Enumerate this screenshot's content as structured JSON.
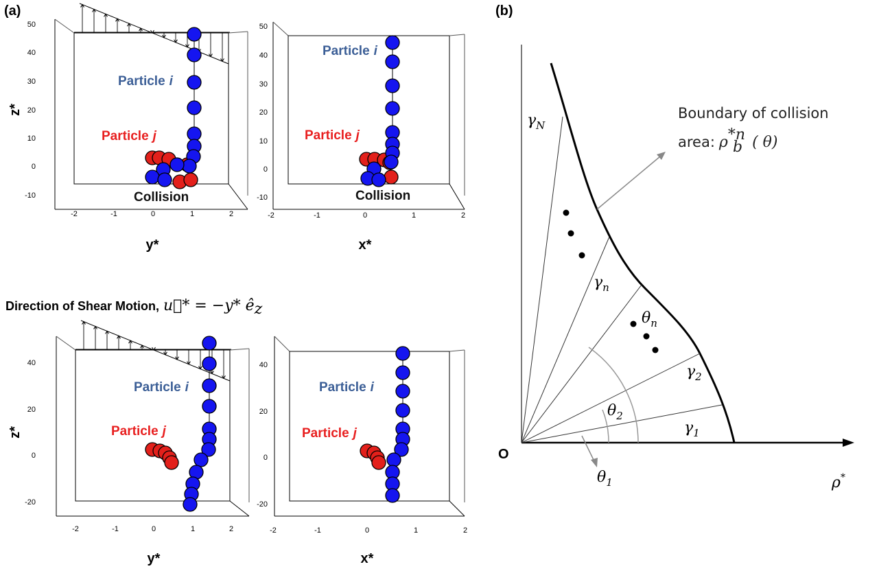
{
  "panel_a": {
    "label": "(a)",
    "heading": "Direction of Shear Motion,",
    "equation": "u⃗* = −y* ê",
    "equation_sub": "z",
    "plots": [
      {
        "z_label": "z*",
        "h_label": "y*",
        "z_ticks": [
          50,
          40,
          30,
          20,
          10,
          0,
          -10
        ],
        "h_ticks": [
          -2,
          -1,
          0,
          1,
          2
        ],
        "particle_i": "Particle",
        "i": "i",
        "particle_j": "Particle",
        "j": "j",
        "collision": "Collision"
      },
      {
        "z_label": "",
        "h_label": "x*",
        "z_ticks": [
          50,
          40,
          30,
          20,
          10,
          0,
          -10
        ],
        "h_ticks": [
          -2,
          -1,
          0,
          1,
          2
        ],
        "particle_i": "Particle",
        "i": "i",
        "particle_j": "Particle",
        "j": "j",
        "collision": "Collision"
      },
      {
        "z_label": "z*",
        "h_label": "y*",
        "z_ticks": [
          40,
          20,
          0,
          -20
        ],
        "h_ticks": [
          -2,
          -1,
          0,
          1,
          2
        ],
        "particle_i": "Particle",
        "i": "i",
        "particle_j": "Particle",
        "j": "j"
      },
      {
        "z_label": "",
        "h_label": "x*",
        "z_ticks": [
          40,
          20,
          0,
          -20
        ],
        "h_ticks": [
          -2,
          -1,
          0,
          1,
          2
        ],
        "particle_i": "Particle",
        "i": "i",
        "particle_j": "Particle",
        "j": "j"
      }
    ]
  },
  "panel_b": {
    "label": "(b)",
    "boundary_line1": "Boundary of collision",
    "boundary_line2": "area:",
    "rho": "ρ",
    "rho_sub": "b",
    "rho_sup": "*n",
    "rho_arg": "( θ)",
    "gamma_N": {
      "symbol": "γ",
      "sub": "N"
    },
    "gamma_n": {
      "symbol": "γ",
      "sub": "n"
    },
    "gamma_2": {
      "symbol": "γ",
      "sub": "2"
    },
    "gamma_1": {
      "symbol": "γ",
      "sub": "1"
    },
    "theta_n": {
      "symbol": "θ",
      "sub": "n"
    },
    "theta_2": {
      "symbol": "θ",
      "sub": "2"
    },
    "theta_1": {
      "symbol": "θ",
      "sub": "1"
    },
    "origin": "O",
    "axis": {
      "symbol": "ρ",
      "sup": "*"
    }
  }
}
